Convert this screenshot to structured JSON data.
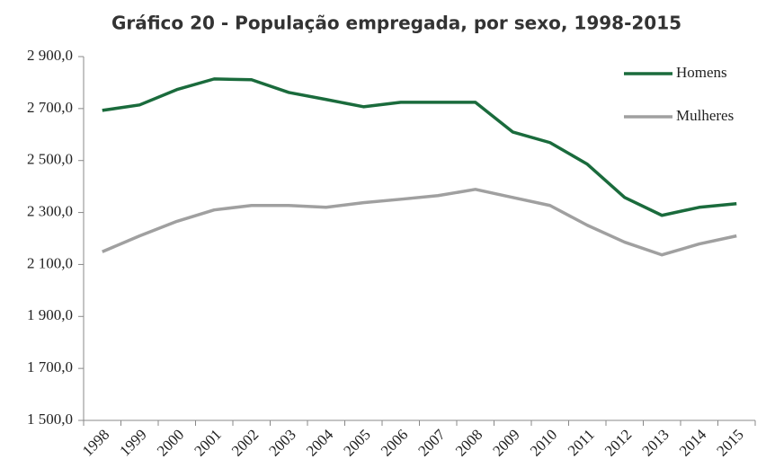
{
  "chart_data": {
    "type": "line",
    "title": "Gráfico 20 - População empregada, por sexo, 1998-2015",
    "categories": [
      "1998",
      "1999",
      "2000",
      "2001",
      "2002",
      "2003",
      "2004",
      "2005",
      "2006",
      "2007",
      "2008",
      "2009",
      "2010",
      "2011",
      "2012",
      "2013",
      "2014",
      "2015"
    ],
    "series": [
      {
        "name": "Homens",
        "color": "#1a6b3c",
        "values": [
          2693,
          2714,
          2773,
          2814,
          2811,
          2762,
          2735,
          2707,
          2724,
          2724,
          2724,
          2610,
          2569,
          2486,
          2358,
          2289,
          2320,
          2334
        ]
      },
      {
        "name": "Mulheres",
        "color": "#a0a0a0",
        "values": [
          2149,
          2210,
          2266,
          2310,
          2327,
          2327,
          2320,
          2338,
          2351,
          2365,
          2389,
          2358,
          2327,
          2251,
          2186,
          2137,
          2179,
          2210
        ]
      }
    ],
    "ylim": [
      1500,
      2900
    ],
    "yticks": [
      {
        "value": 1500,
        "label": "1 500,0"
      },
      {
        "value": 1700,
        "label": "1 700,0"
      },
      {
        "value": 1900,
        "label": "1 900,0"
      },
      {
        "value": 2100,
        "label": "2 100,0"
      },
      {
        "value": 2300,
        "label": "2 300,0"
      },
      {
        "value": 2500,
        "label": "2 500,0"
      },
      {
        "value": 2700,
        "label": "2 700,0"
      },
      {
        "value": 2900,
        "label": "2 900,0"
      }
    ],
    "legend": "top-right"
  }
}
